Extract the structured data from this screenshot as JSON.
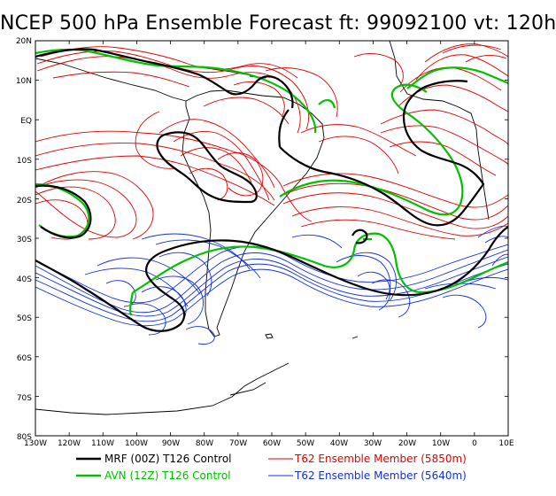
{
  "title": "NCEP 500 hPa Ensemble Forecast  ft: 99092100 vt: 120h",
  "lat_labels": [
    "20N",
    "10N",
    "EQ",
    "10S",
    "20S",
    "30S",
    "40S",
    "50S",
    "60S",
    "70S",
    "80S"
  ],
  "lon_labels": [
    "130W",
    "120W",
    "110W",
    "100W",
    "90W",
    "80W",
    "70W",
    "60W",
    "50W",
    "40W",
    "30W",
    "20W",
    "10W",
    "0",
    "10E"
  ],
  "legend": [
    {
      "label": "MRF (00Z) T126 Control",
      "color": "#000000"
    },
    {
      "label": "AVN (12Z) T126 Control",
      "color": "#00c000"
    },
    {
      "label": "T62 Ensemble Member (5850m)",
      "color": "#e00000"
    },
    {
      "label": "T62 Ensemble Member (5640m)",
      "color": "#1030e0"
    }
  ],
  "colors": {
    "control_mrf": "#000000",
    "control_avn": "#00c000",
    "member_5850": "#e00000",
    "member_5640": "#1030e0",
    "coastline": "#000000"
  }
}
